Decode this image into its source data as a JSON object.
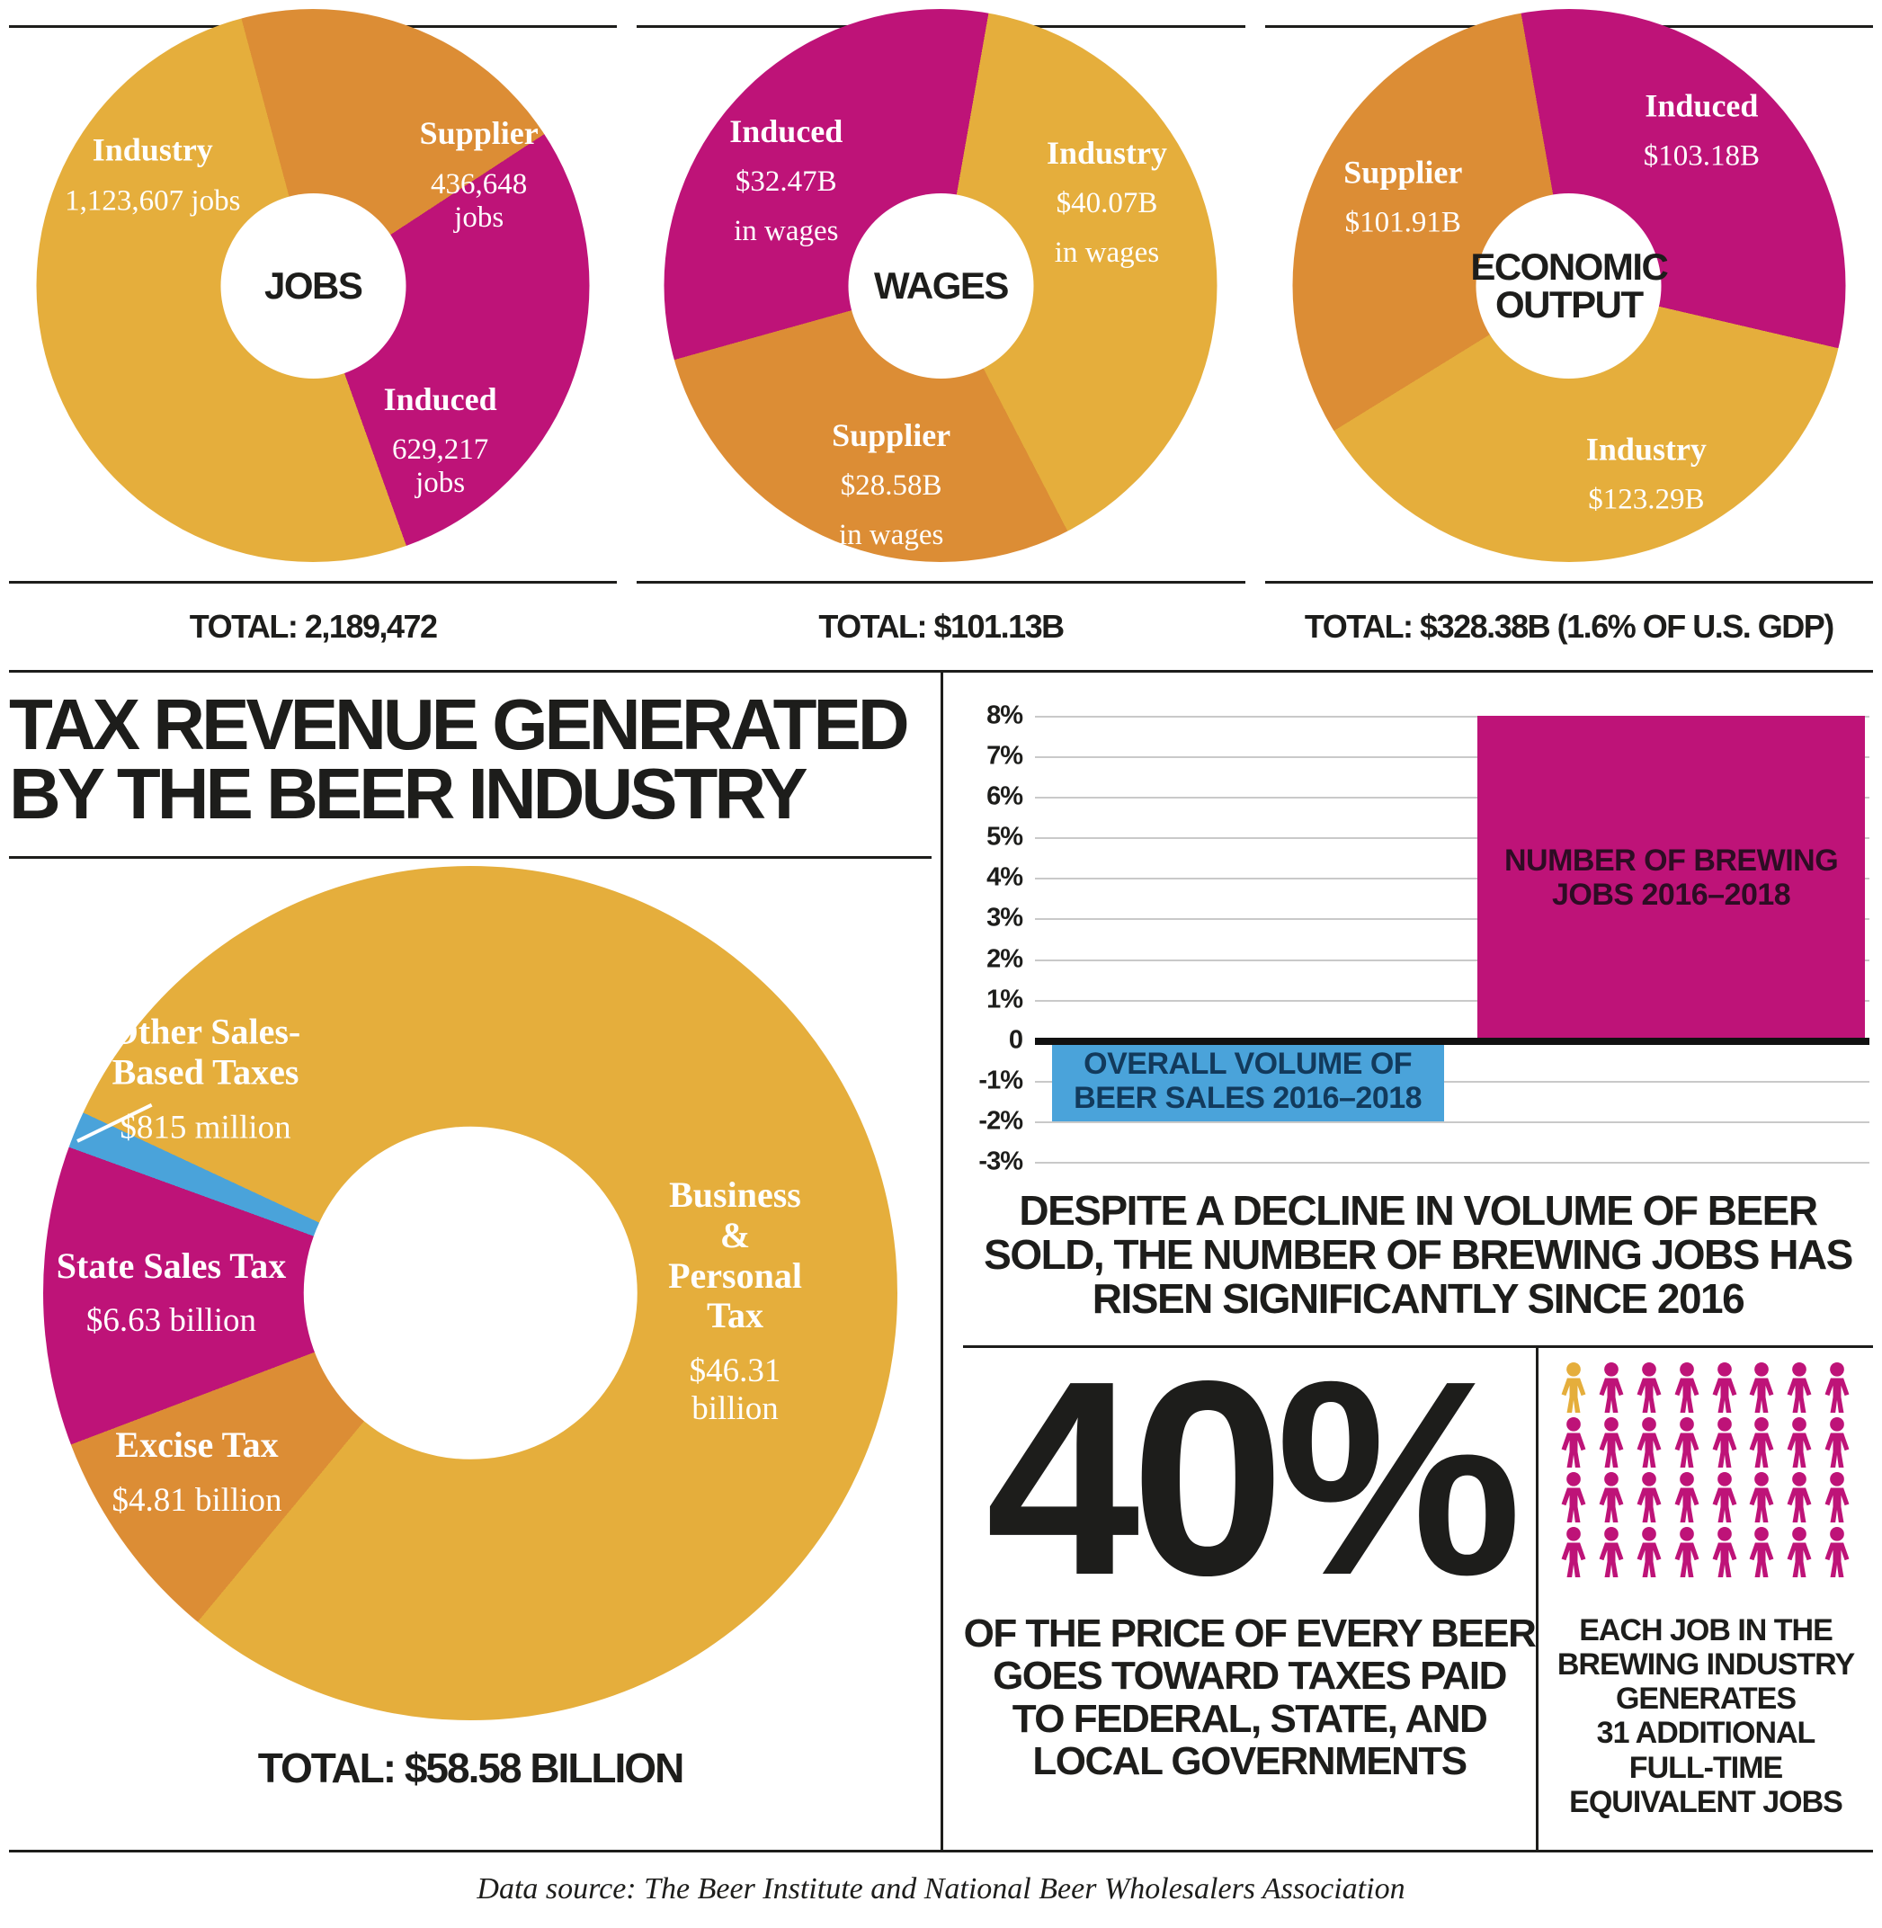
{
  "colors": {
    "gold": "#E5AE3C",
    "orange": "#DC8D35",
    "magenta": "#BE1378",
    "blue": "#4AA3DA",
    "ink": "#1D1D1B",
    "grid": "#C9C9C9",
    "jobs_bar_text": "#2E0C24",
    "sales_bar_text": "#123A5C"
  },
  "chart_data": [
    {
      "type": "pie",
      "title": "JOBS",
      "total_label": "TOTAL: 2,189,472",
      "start_angle": -15,
      "segments": [
        {
          "name": "Supplier",
          "value": 436648,
          "value_label": "436,648 jobs",
          "color": "orange"
        },
        {
          "name": "Induced",
          "value": 629217,
          "value_label": "629,217 jobs",
          "color": "magenta"
        },
        {
          "name": "Industry",
          "value": 1123607,
          "value_label": "1,123,607 jobs",
          "color": "gold"
        }
      ]
    },
    {
      "type": "pie",
      "title": "WAGES",
      "total_label": "TOTAL: $101.13B",
      "start_angle": 10,
      "segments": [
        {
          "name": "Industry",
          "value": 40.07,
          "value_label": "$40.07B",
          "unit": "in wages",
          "color": "gold"
        },
        {
          "name": "Supplier",
          "value": 28.58,
          "value_label": "$28.58B",
          "unit": "in wages",
          "color": "orange"
        },
        {
          "name": "Induced",
          "value": 32.47,
          "value_label": "$32.47B",
          "unit": "in wages",
          "color": "magenta"
        }
      ]
    },
    {
      "type": "pie",
      "title": "ECONOMIC\nOUTPUT",
      "total_label": "TOTAL: $328.38B (1.6% OF U.S. GDP)",
      "start_angle": -10,
      "segments": [
        {
          "name": "Induced",
          "value": 103.18,
          "value_label": "$103.18B",
          "color": "magenta"
        },
        {
          "name": "Industry",
          "value": 123.29,
          "value_label": "$123.29B",
          "color": "gold"
        },
        {
          "name": "Supplier",
          "value": 101.91,
          "value_label": "$101.91B",
          "color": "orange"
        }
      ]
    },
    {
      "type": "pie",
      "title": "TAX REVENUE GENERATED\nBY THE BEER INDUSTRY",
      "total_label": "TOTAL: $58.58 BILLION",
      "start_angle": -65,
      "segments": [
        {
          "name": "Business &\nPersonal Tax",
          "value": 46.31,
          "value_label": "$46.31 billion",
          "color": "gold"
        },
        {
          "name": "Excise Tax",
          "value": 4.81,
          "value_label": "$4.81 billion",
          "color": "orange"
        },
        {
          "name": "State Sales Tax",
          "value": 6.63,
          "value_label": "$6.63 billion",
          "color": "magenta"
        },
        {
          "name": "Other Sales-\nBased Taxes",
          "value": 0.815,
          "value_label": "$815 million",
          "color": "blue"
        }
      ]
    },
    {
      "type": "bar",
      "ylim": [
        -3,
        8
      ],
      "yticks": [
        {
          "label": "8%",
          "value": 8
        },
        {
          "label": "7%",
          "value": 7
        },
        {
          "label": "6%",
          "value": 6
        },
        {
          "label": "5%",
          "value": 5
        },
        {
          "label": "4%",
          "value": 4
        },
        {
          "label": "3%",
          "value": 3
        },
        {
          "label": "2%",
          "value": 2
        },
        {
          "label": "1%",
          "value": 1
        },
        {
          "label": "0",
          "value": 0
        },
        {
          "label": "-1%",
          "value": -1
        },
        {
          "label": "-2%",
          "value": -2
        },
        {
          "label": "-3%",
          "value": -3
        }
      ],
      "series": [
        {
          "name": "OVERALL VOLUME OF\nBEER SALES 2016–2018",
          "value": -2,
          "color": "blue"
        },
        {
          "name": "NUMBER OF BREWING\nJOBS 2016–2018",
          "value": 8,
          "color": "magenta"
        }
      ],
      "caption": "DESPITE A DECLINE IN VOLUME OF BEER\nSOLD, THE NUMBER OF BREWING JOBS HAS\nRISEN SIGNIFICANTLY SINCE 2016"
    }
  ],
  "stats": {
    "forty_percent": "40%",
    "forty_caption": "OF THE PRICE OF EVERY BEER\nGOES TOWARD TAXES PAID\nTO FEDERAL, STATE, AND\nLOCAL GOVERNMENTS"
  },
  "pictogram": {
    "total": 32,
    "highlighted": 1,
    "per_row": 8,
    "caption": "EACH JOB IN THE\nBREWING INDUSTRY\nGENERATES\n31 ADDITIONAL\nFULL-TIME\nEQUIVALENT JOBS"
  },
  "footer": {
    "source": "Data source: The Beer Institute and National Beer Wholesalers Association"
  }
}
